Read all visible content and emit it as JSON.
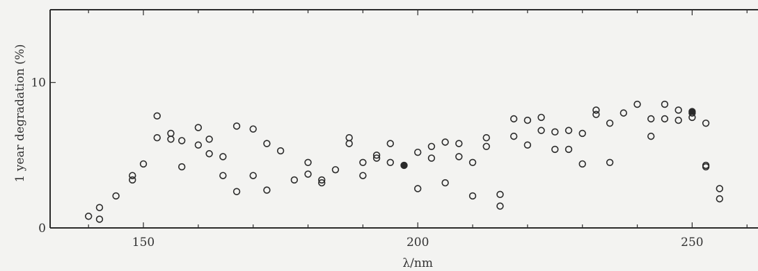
{
  "chart_data": {
    "type": "scatter",
    "xlabel": "λ/nm",
    "ylabel": "1 year degradation (%)",
    "xlim": [
      133,
      262
    ],
    "ylim": [
      0,
      15
    ],
    "xticks": [
      150,
      200,
      250
    ],
    "yticks": [
      0,
      10
    ],
    "grid": false,
    "series": [
      {
        "marker": "open-circle",
        "points": [
          [
            140,
            0.8
          ],
          [
            142,
            1.4
          ],
          [
            142,
            0.6
          ],
          [
            145,
            2.2
          ],
          [
            148,
            3.6
          ],
          [
            148,
            3.3
          ],
          [
            150,
            4.4
          ],
          [
            152.5,
            7.7
          ],
          [
            152.5,
            6.2
          ],
          [
            155,
            6.5
          ],
          [
            155,
            6.1
          ],
          [
            157,
            6.0
          ],
          [
            157,
            4.2
          ],
          [
            160,
            6.9
          ],
          [
            160,
            5.7
          ],
          [
            162,
            6.1
          ],
          [
            162,
            5.1
          ],
          [
            164.5,
            4.9
          ],
          [
            164.5,
            3.6
          ],
          [
            167,
            7.0
          ],
          [
            167,
            2.5
          ],
          [
            170,
            6.8
          ],
          [
            170,
            3.6
          ],
          [
            172.5,
            5.8
          ],
          [
            172.5,
            2.6
          ],
          [
            175,
            5.3
          ],
          [
            177.5,
            3.3
          ],
          [
            180,
            4.5
          ],
          [
            180,
            3.7
          ],
          [
            182.5,
            3.3
          ],
          [
            182.5,
            3.1
          ],
          [
            185,
            4.0
          ],
          [
            187.5,
            6.2
          ],
          [
            187.5,
            5.8
          ],
          [
            190,
            4.5
          ],
          [
            190,
            3.6
          ],
          [
            192.5,
            5.0
          ],
          [
            192.5,
            4.8
          ],
          [
            195,
            5.8
          ],
          [
            195,
            4.5
          ],
          [
            200,
            5.2
          ],
          [
            200,
            2.7
          ],
          [
            202.5,
            5.6
          ],
          [
            202.5,
            4.8
          ],
          [
            205,
            5.9
          ],
          [
            205,
            3.1
          ],
          [
            207.5,
            5.8
          ],
          [
            207.5,
            4.9
          ],
          [
            210,
            4.5
          ],
          [
            210,
            2.2
          ],
          [
            212.5,
            6.2
          ],
          [
            212.5,
            5.6
          ],
          [
            215,
            2.3
          ],
          [
            215,
            1.5
          ],
          [
            217.5,
            7.5
          ],
          [
            217.5,
            6.3
          ],
          [
            220,
            7.4
          ],
          [
            220,
            5.7
          ],
          [
            222.5,
            7.6
          ],
          [
            222.5,
            6.7
          ],
          [
            225,
            6.6
          ],
          [
            225,
            5.4
          ],
          [
            227.5,
            6.7
          ],
          [
            227.5,
            5.4
          ],
          [
            230,
            6.5
          ],
          [
            230,
            4.4
          ],
          [
            232.5,
            8.1
          ],
          [
            232.5,
            7.8
          ],
          [
            235,
            7.2
          ],
          [
            235,
            4.5
          ],
          [
            237.5,
            7.9
          ],
          [
            240,
            8.5
          ],
          [
            242.5,
            7.5
          ],
          [
            242.5,
            6.3
          ],
          [
            245,
            8.5
          ],
          [
            245,
            7.5
          ],
          [
            247.5,
            8.1
          ],
          [
            247.5,
            7.4
          ],
          [
            250,
            7.9
          ],
          [
            250,
            7.6
          ],
          [
            252.5,
            7.2
          ],
          [
            252.5,
            4.3
          ],
          [
            252.5,
            4.2
          ],
          [
            255,
            2.7
          ],
          [
            255,
            2.0
          ]
        ]
      },
      {
        "marker": "filled-circle",
        "points": [
          [
            197.5,
            4.3
          ],
          [
            250,
            8.0
          ]
        ]
      }
    ]
  }
}
